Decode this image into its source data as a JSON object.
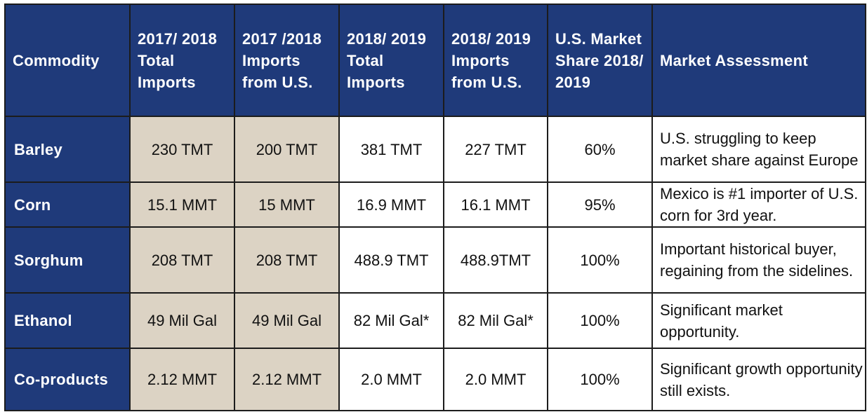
{
  "table": {
    "headers": [
      "Commodity",
      "2017/ 2018 Total Imports",
      "2017 /2018 Imports from U.S.",
      "2018/ 2019 Total Imports",
      "2018/ 2019 Imports from U.S.",
      "U.S. Market Share 2018/ 2019",
      "Market Assessment"
    ],
    "rows": [
      {
        "commodity": "Barley",
        "total_1718": "230 TMT",
        "us_1718": "200 TMT",
        "total_1819": "381 TMT",
        "us_1819": "227 TMT",
        "share": "60%",
        "assessment": "U.S. struggling to keep market share against Europe"
      },
      {
        "commodity": "Corn",
        "total_1718": "15.1 MMT",
        "us_1718": "15 MMT",
        "total_1819": "16.9 MMT",
        "us_1819": "16.1 MMT",
        "share": "95%",
        "assessment": "Mexico is #1 importer of U.S. corn for 3rd year."
      },
      {
        "commodity": "Sorghum",
        "total_1718": "208 TMT",
        "us_1718": "208 TMT",
        "total_1819": "488.9 TMT",
        "us_1819": "488.9TMT",
        "share": "100%",
        "assessment": "Important historical buyer, regaining from the sidelines."
      },
      {
        "commodity": "Ethanol",
        "total_1718": "49 Mil Gal",
        "us_1718": "49 Mil Gal",
        "total_1819": "82 Mil Gal*",
        "us_1819": "82 Mil Gal*",
        "share": "100%",
        "assessment": "Significant market opportunity."
      },
      {
        "commodity": "Co-products",
        "total_1718": "2.12 MMT",
        "us_1718": "2.12 MMT",
        "total_1819": "2.0 MMT",
        "us_1819": "2.0 MMT",
        "share": "100%",
        "assessment": "Significant growth opportunity still exists."
      }
    ]
  },
  "colors": {
    "header_bg": "#1f3a7a",
    "highlight_bg": "#dcd3c4",
    "cell_bg": "#ffffff",
    "border": "#1c1c1c"
  }
}
